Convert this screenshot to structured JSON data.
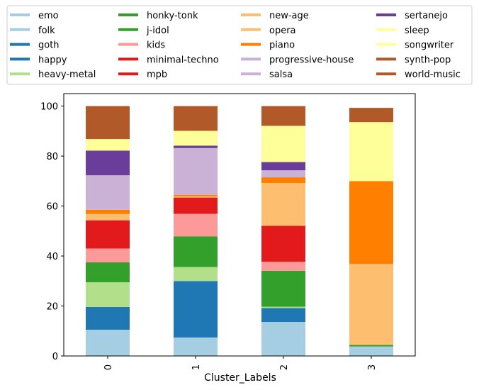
{
  "chart_data": {
    "type": "bar",
    "stacked": true,
    "categories": [
      "0",
      "1",
      "2",
      "3"
    ],
    "xlabel": "Cluster_Labels",
    "ylabel": "",
    "ylim": [
      0,
      105
    ],
    "yticks": [
      0,
      20,
      40,
      60,
      80,
      100
    ],
    "legend_position": "top",
    "series": [
      {
        "name": "emo",
        "color": "#a6cee3",
        "values": [
          10.5,
          7.4,
          13.6,
          3.8
        ]
      },
      {
        "name": "folk",
        "color": "#a6cee3",
        "values": [
          0,
          0,
          0,
          0
        ]
      },
      {
        "name": "goth",
        "color": "#1f78b4",
        "values": [
          9.1,
          0,
          5.6,
          0
        ]
      },
      {
        "name": "happy",
        "color": "#1f78b4",
        "values": [
          0,
          22.6,
          0,
          0
        ]
      },
      {
        "name": "heavy-metal",
        "color": "#b2df8a",
        "values": [
          9.9,
          5.6,
          0.5,
          0
        ]
      },
      {
        "name": "honky-tonk",
        "color": "#33a02c",
        "values": [
          8.0,
          12.3,
          14.4,
          0.6
        ]
      },
      {
        "name": "j-idol",
        "color": "#33a02c",
        "values": [
          0,
          0,
          0,
          0
        ]
      },
      {
        "name": "kids",
        "color": "#fb9a99",
        "values": [
          5.5,
          9.0,
          3.6,
          0
        ]
      },
      {
        "name": "minimal-techno",
        "color": "#e31a1c",
        "values": [
          11.3,
          6.5,
          14.4,
          0
        ]
      },
      {
        "name": "mpb",
        "color": "#e31a1c",
        "values": [
          0,
          0,
          0,
          0
        ]
      },
      {
        "name": "new-age",
        "color": "#fdbf6f",
        "values": [
          2.5,
          0.5,
          17.1,
          32.4
        ]
      },
      {
        "name": "opera",
        "color": "#fdbf6f",
        "values": [
          0,
          0,
          0,
          0
        ]
      },
      {
        "name": "piano",
        "color": "#ff7f00",
        "values": [
          1.7,
          0.6,
          2.3,
          33.2
        ]
      },
      {
        "name": "progressive-house",
        "color": "#cab2d6",
        "values": [
          13.8,
          18.7,
          2.8,
          0
        ]
      },
      {
        "name": "salsa",
        "color": "#cab2d6",
        "values": [
          0,
          0,
          0,
          0
        ]
      },
      {
        "name": "sertanejo",
        "color": "#6a3d9a",
        "values": [
          9.9,
          1.0,
          3.3,
          0
        ]
      },
      {
        "name": "sleep",
        "color": "#ffff99",
        "values": [
          4.6,
          5.9,
          14.5,
          23.6
        ]
      },
      {
        "name": "songwriter",
        "color": "#ffff99",
        "values": [
          0,
          0,
          0,
          0
        ]
      },
      {
        "name": "synth-pop",
        "color": "#b15928",
        "values": [
          13.2,
          9.9,
          7.9,
          5.7
        ]
      },
      {
        "name": "world-music",
        "color": "#b15928",
        "values": [
          0,
          0,
          0,
          0
        ]
      }
    ]
  }
}
